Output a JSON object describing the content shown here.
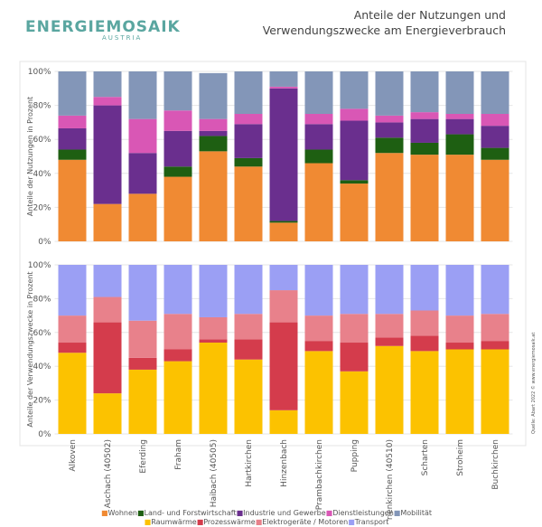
{
  "logo": {
    "name": "ENERGIEMOSAIK",
    "country": "AUSTRIA"
  },
  "title": "Anteile der Nutzungen und Verwendungszwecke am Energieverbrauch",
  "source": "Quelle: Abart 2022 © www.energiemosaik.at",
  "chart_data": [
    {
      "type": "stacked_bar",
      "ylabel": "Anteile der Nutzungen in Prozent",
      "ylim": [
        0,
        100
      ],
      "yticks": [
        {
          "value": 0,
          "label": "0%"
        },
        {
          "value": 20,
          "label": "20%"
        },
        {
          "value": 40,
          "label": "40%"
        },
        {
          "value": 60,
          "label": "60%"
        },
        {
          "value": 80,
          "label": "80%"
        },
        {
          "value": 100,
          "label": "100%"
        }
      ],
      "grid": true,
      "series": [
        {
          "name": "Wohnen",
          "color": "#f08a33",
          "values": [
            48,
            22,
            28,
            38,
            53,
            44,
            11,
            46,
            34,
            52,
            51,
            51,
            48
          ]
        },
        {
          "name": "Land- und Forstwirtschaft",
          "color": "#1e5f12",
          "values": [
            6,
            0,
            0,
            6,
            9,
            5,
            1,
            8,
            2,
            9,
            7,
            12,
            7
          ]
        },
        {
          "name": "Industrie und Gewerbe",
          "color": "#6a2f8e",
          "values": [
            12.5,
            58,
            24,
            21,
            3,
            20,
            78,
            15,
            35,
            9,
            14,
            9,
            13
          ]
        },
        {
          "name": "Dienstleistungen",
          "color": "#d957b5",
          "values": [
            7.5,
            5,
            20,
            12,
            7,
            6,
            1,
            6,
            7,
            4,
            4,
            3,
            7
          ]
        },
        {
          "name": "Mobilität",
          "color": "#8396b8",
          "values": [
            26,
            15,
            28,
            23,
            27,
            25,
            9,
            25,
            22,
            26,
            24,
            25,
            25
          ]
        }
      ]
    },
    {
      "type": "stacked_bar",
      "ylabel": "Anteile der Verwendungszwecke in Prozent",
      "categories": [
        "Alkoven",
        "Aschach (40502)",
        "Eferding",
        "Fraham",
        "Haibach (40505)",
        "Hartkirchen",
        "Hinzenbach",
        "Prambachkirchen",
        "Pupping",
        "rienkirchen (40510)",
        "Scharten",
        "Stroheim",
        "Buchkirchen"
      ],
      "ylim": [
        0,
        100
      ],
      "yticks": [
        {
          "value": 0,
          "label": "0%"
        },
        {
          "value": 20,
          "label": "20%"
        },
        {
          "value": 40,
          "label": "40%"
        },
        {
          "value": 60,
          "label": "60%"
        },
        {
          "value": 80,
          "label": "80%"
        },
        {
          "value": 100,
          "label": "100%"
        }
      ],
      "grid": true,
      "series": [
        {
          "name": "Raumwärme",
          "color": "#fcc200",
          "values": [
            48,
            24,
            38,
            43,
            54,
            44,
            14,
            49,
            37,
            52,
            49,
            50,
            50
          ]
        },
        {
          "name": "Prozesswärme",
          "color": "#d43c4c",
          "values": [
            6,
            42,
            7,
            7,
            2,
            12,
            52,
            6,
            17,
            5,
            9,
            4,
            5
          ]
        },
        {
          "name": "Elektrogeräte / Motoren",
          "color": "#e8818b",
          "values": [
            16,
            15,
            22,
            21,
            13,
            15,
            19,
            15,
            17,
            14,
            15,
            16,
            16
          ]
        },
        {
          "name": "Transport",
          "color": "#9b9ff4",
          "values": [
            30,
            19,
            33,
            29,
            31,
            29,
            15,
            30,
            29,
            29,
            27,
            30,
            29
          ]
        }
      ]
    }
  ]
}
